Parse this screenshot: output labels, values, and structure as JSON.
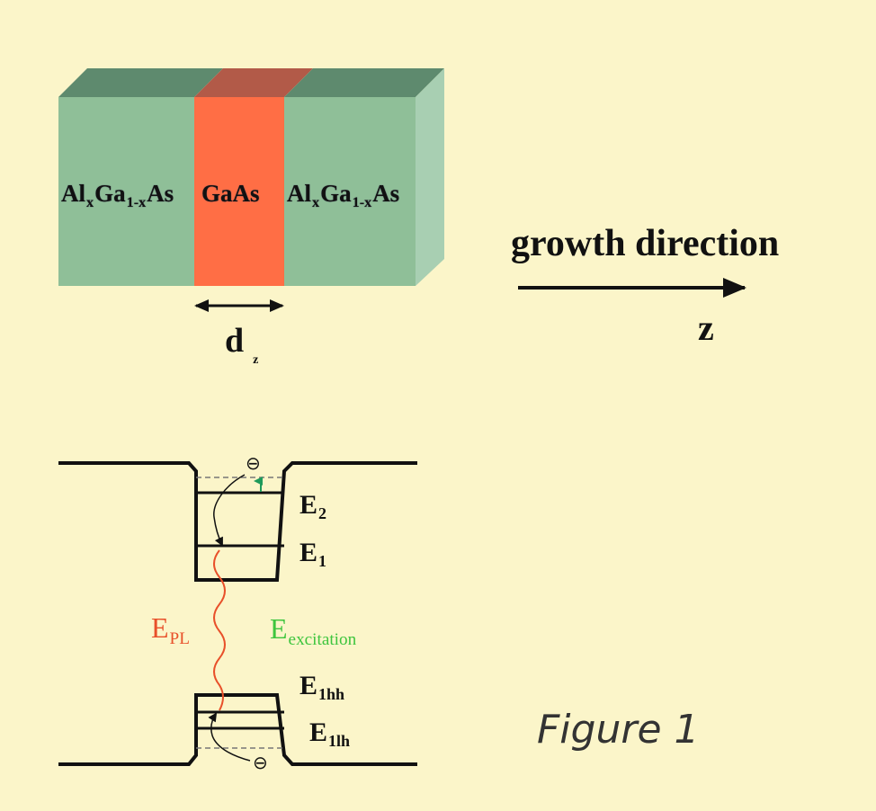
{
  "colors": {
    "background": "#fbf5c9",
    "algaas_front": "#8fbf98",
    "algaas_top": "#5e8a6e",
    "algaas_side": "#a8cfb2",
    "gaas_front": "#ff6e45",
    "gaas_top": "#b25a48",
    "line": "#111111",
    "epl": "#e8502a",
    "excitation": "#3ec53e"
  },
  "slab": {
    "left_layer": {
      "base": "Al",
      "sub1": "x",
      "mid": "Ga",
      "sub2": "1-x",
      "end": "As"
    },
    "center_layer": "GaAs",
    "right_layer": {
      "base": "Al",
      "sub1": "x",
      "mid": "Ga",
      "sub2": "1-x",
      "end": "As"
    }
  },
  "thickness_label": {
    "main": "d",
    "sub": "z"
  },
  "growth": {
    "label": "growth direction",
    "axis": "z"
  },
  "band": {
    "conduction_levels": [
      {
        "main": "E",
        "sub": "2"
      },
      {
        "main": "E",
        "sub": "1"
      }
    ],
    "valence_levels": [
      {
        "main": "E",
        "sub": "1hh"
      },
      {
        "main": "E",
        "sub": "1lh"
      }
    ],
    "epl": {
      "main": "E",
      "sub": "PL"
    },
    "excitation": {
      "main": "E",
      "sub": "excitation"
    },
    "carrier_symbol": "⊖"
  },
  "figure_caption": "Figure 1"
}
